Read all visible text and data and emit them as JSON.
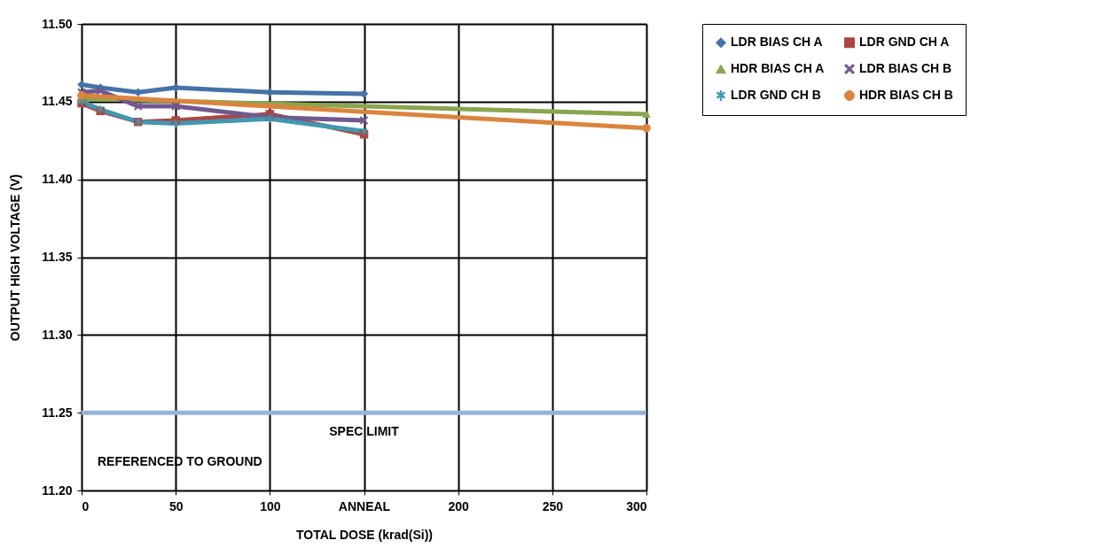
{
  "chart_data": {
    "type": "line",
    "xlabel": "TOTAL DOSE (krad(Si))",
    "ylabel": "OUTPUT HIGH VOLTAGE (V)",
    "xlim": [
      0,
      300
    ],
    "xticks": [
      0,
      50,
      100,
      {
        "value": 150,
        "label": "ANNEAL"
      },
      200,
      250,
      300
    ],
    "ylim": [
      11.2,
      11.5
    ],
    "yticks": [
      {
        "value": 11.2,
        "label": "11.20"
      },
      11.25,
      {
        "value": 11.3,
        "label": "11.30"
      },
      11.35,
      {
        "value": 11.4,
        "label": "11.40"
      },
      11.45,
      {
        "value": 11.5,
        "label": "11.50"
      }
    ],
    "grid": true,
    "legend": "right",
    "series": [
      {
        "name": "LDR BIAS CH A",
        "color": "#4572a7",
        "marker": "diamond",
        "x": [
          0,
          10,
          30,
          50,
          100,
          150
        ],
        "values": [
          11.461,
          11.459,
          11.456,
          11.459,
          11.456,
          11.455
        ]
      },
      {
        "name": "LDR GND CH A",
        "color": "#aa4643",
        "marker": "square",
        "x": [
          0,
          10,
          30,
          50,
          100,
          150
        ],
        "values": [
          11.449,
          11.444,
          11.437,
          11.438,
          11.442,
          11.429
        ]
      },
      {
        "name": "HDR BIAS CH A",
        "color": "#89a54e",
        "marker": "triangle",
        "x": [
          0,
          300
        ],
        "values": [
          11.452,
          11.442
        ]
      },
      {
        "name": "LDR BIAS CH B",
        "color": "#71588f",
        "marker": "cross",
        "x": [
          0,
          10,
          30,
          50,
          100,
          150
        ],
        "values": [
          11.456,
          11.457,
          11.447,
          11.447,
          11.44,
          11.438
        ]
      },
      {
        "name": "LDR GND CH B",
        "color": "#4198af",
        "marker": "star",
        "x": [
          0,
          10,
          30,
          50,
          100,
          150
        ],
        "values": [
          11.45,
          11.445,
          11.437,
          11.436,
          11.439,
          11.431
        ]
      },
      {
        "name": "HDR BIAS CH B",
        "color": "#db843d",
        "marker": "circle",
        "x": [
          0,
          300
        ],
        "values": [
          11.454,
          11.433
        ]
      }
    ],
    "ref_lines": [
      {
        "axis": "y",
        "value": 11.25,
        "label": "SPEC LIMIT",
        "color": "#95b3d7"
      }
    ],
    "annotations": [
      "REFERENCED TO GROUND"
    ]
  }
}
